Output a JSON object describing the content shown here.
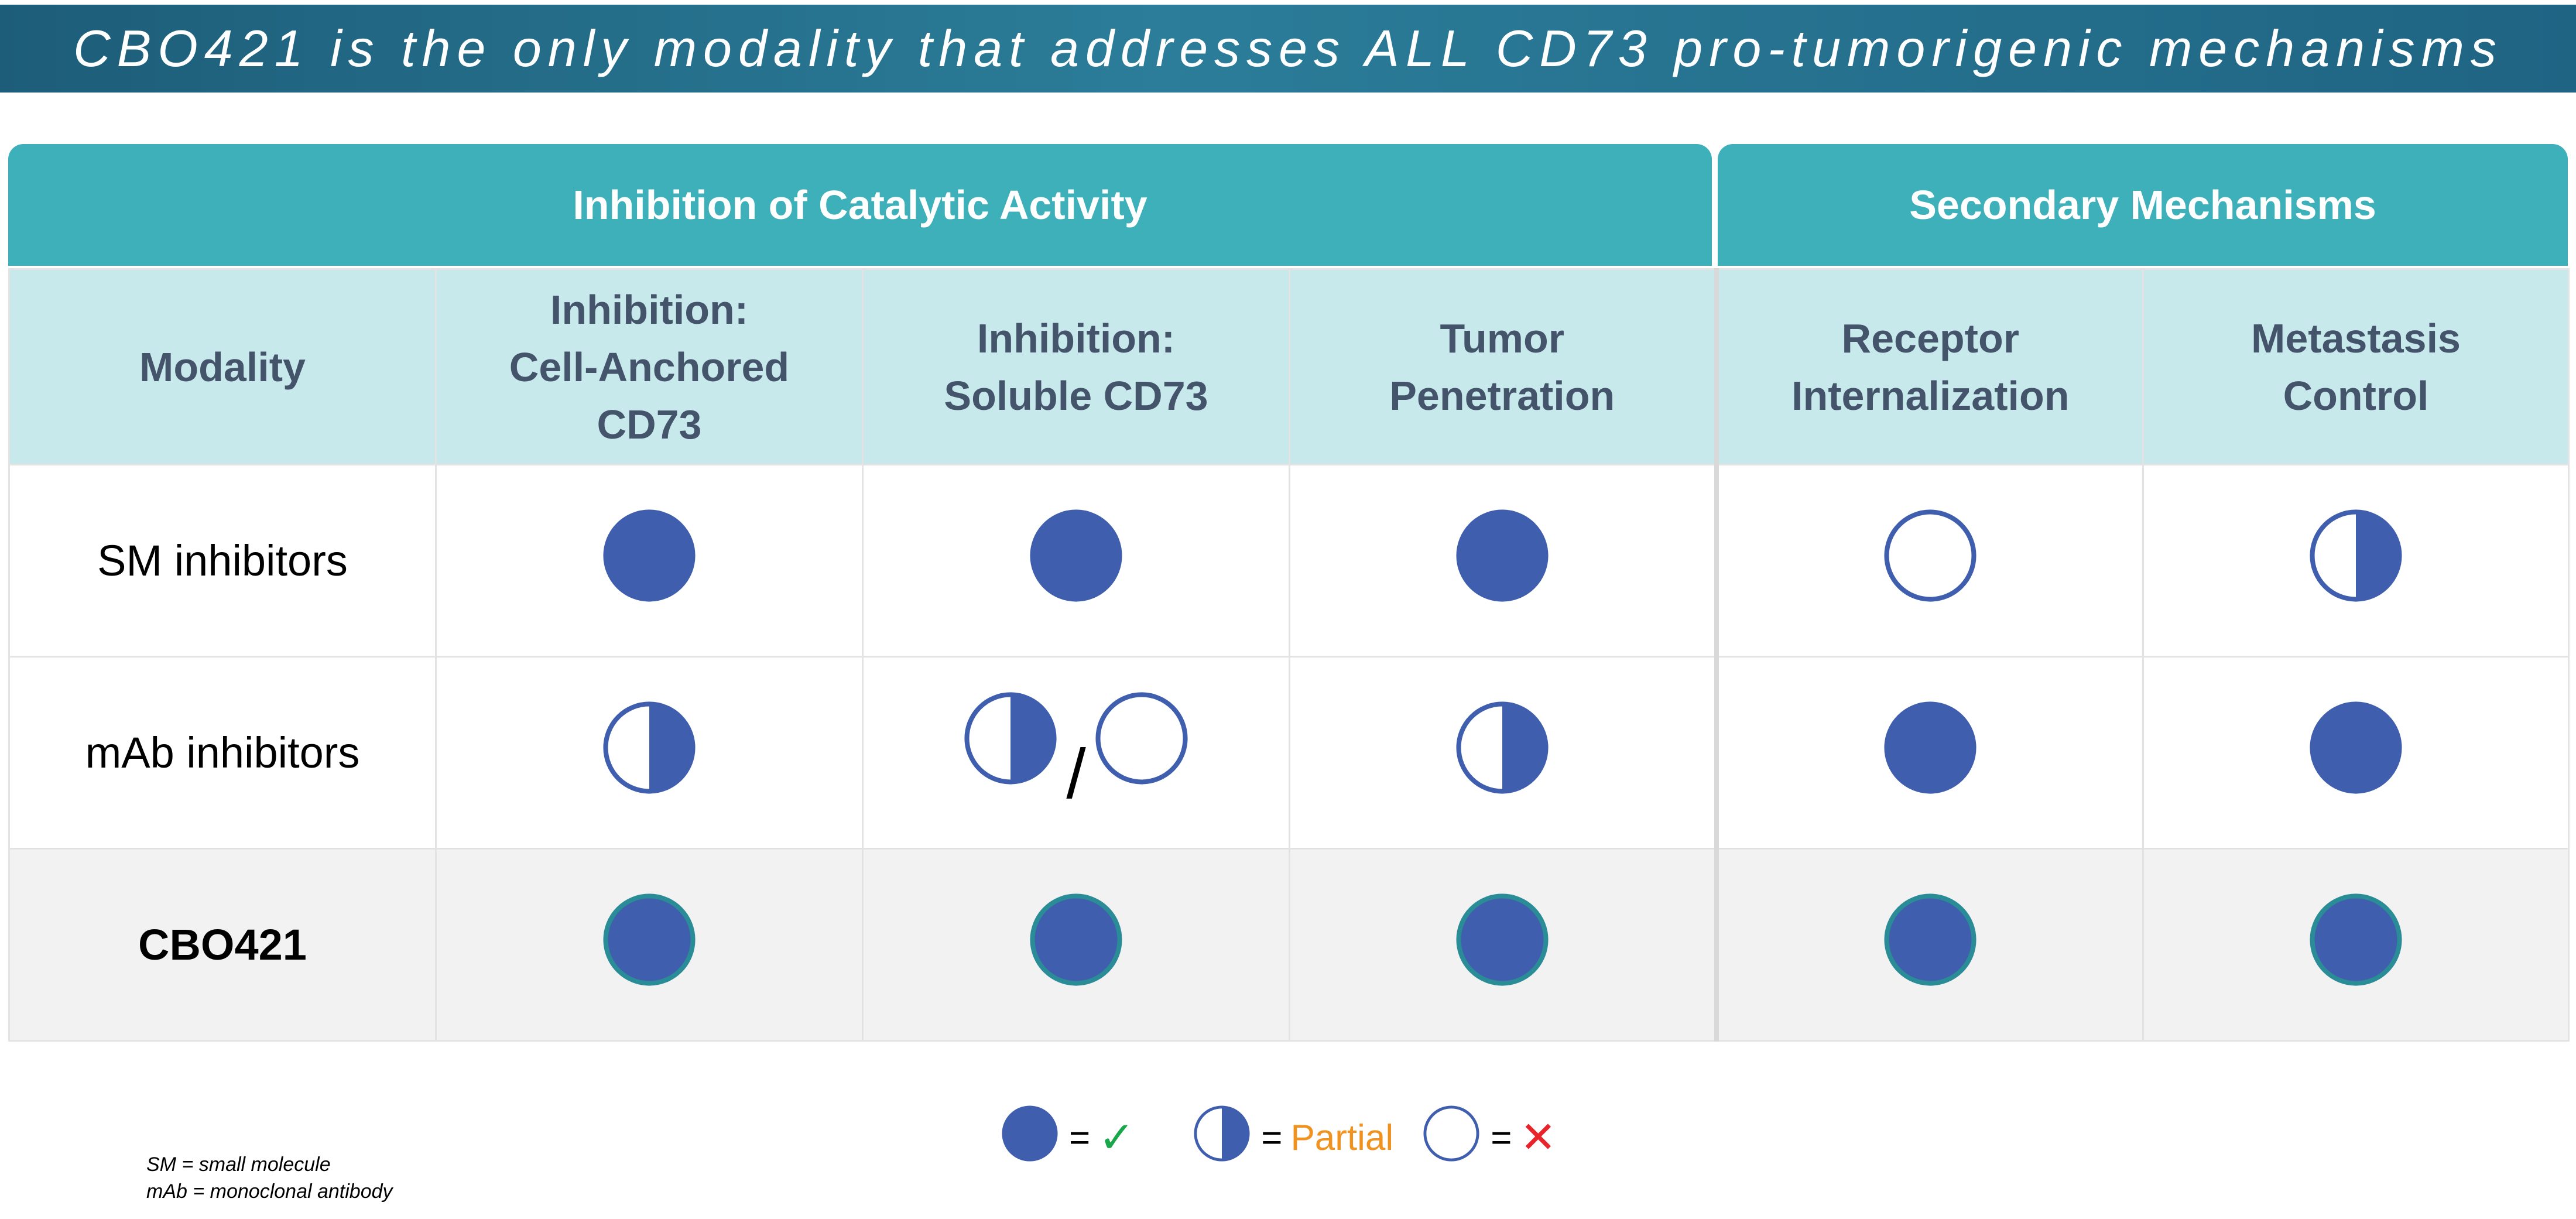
{
  "title": "CBO421 is the only modality that addresses ALL CD73 pro-tumorigenic mechanisms",
  "group_headers": {
    "catalytic": "Inhibition of Catalytic Activity",
    "secondary": "Secondary Mechanisms"
  },
  "columns": {
    "modality": "Modality",
    "cell_anchored": [
      "Inhibition:",
      "Cell-Anchored",
      "CD73"
    ],
    "soluble": [
      "Inhibition:",
      "Soluble CD73"
    ],
    "tumor_penetration": [
      "Tumor",
      "Penetration"
    ],
    "receptor_internalization": [
      "Receptor",
      "Internalization"
    ],
    "metastasis_control": [
      "Metastasis",
      "Control"
    ]
  },
  "rows": [
    {
      "modality": "SM inhibitors",
      "ratings": [
        "full",
        "full",
        "full",
        "none",
        "partial"
      ]
    },
    {
      "modality": "mAb inhibitors",
      "ratings": [
        "partial",
        "partial/none",
        "partial",
        "full",
        "full"
      ]
    },
    {
      "modality": "CBO421",
      "ratings": [
        "full",
        "full",
        "full",
        "full",
        "full"
      ]
    }
  ],
  "legend": {
    "full_symbol": "✓",
    "partial_label": "Partial",
    "none_symbol": "✕",
    "equals": "="
  },
  "footnotes": [
    "SM = small molecule",
    "mAb = monoclonal antibody"
  ],
  "colors": {
    "marker_fill": "#3f5ead",
    "marker_stroke": "#3f5ead",
    "cbo_marker_stroke": "#2a8c96"
  }
}
